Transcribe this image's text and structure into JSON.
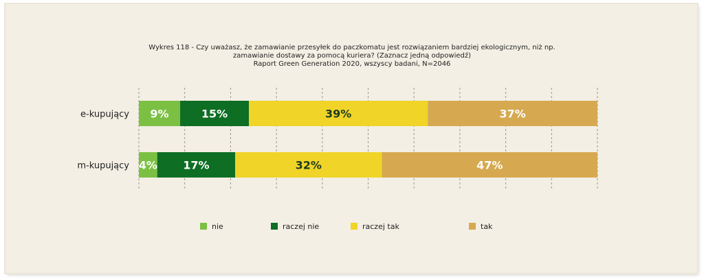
{
  "chart_data": {
    "type": "bar",
    "orientation": "horizontal",
    "stacked": true,
    "percent": true,
    "title_lines": [
      "Wykres 118 - Czy uważasz, że zamawianie przesyłek do paczkomatu jest rozwiązaniem bardziej ekologicznym, niż np.",
      "zamawianie dostawy za pomocą kuriera? (Zaznacz jedną odpowiedź)",
      "Raport Green Generation 2020, wszyscy badani, N=2046"
    ],
    "categories": [
      "e-kupujący",
      "m-kupujący"
    ],
    "series": [
      {
        "name": "nie",
        "color": "#7bc043",
        "label_color": "#ffffff",
        "values": [
          9,
          4
        ]
      },
      {
        "name": "raczej nie",
        "color": "#0d6e24",
        "label_color": "#ffffff",
        "values": [
          15,
          17
        ]
      },
      {
        "name": "raczej tak",
        "color": "#f0d428",
        "label_color": "#1f3b1c",
        "values": [
          39,
          32
        ]
      },
      {
        "name": "tak",
        "color": "#d6a951",
        "label_color": "#ffffff",
        "values": [
          37,
          47
        ]
      }
    ],
    "xlim": [
      0,
      100
    ],
    "grid": true,
    "legend": "bottom",
    "value_suffix": "%"
  }
}
